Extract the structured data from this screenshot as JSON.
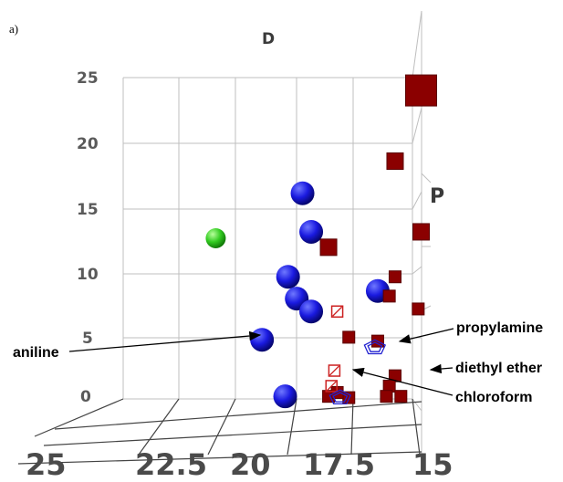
{
  "panel_label": "a)",
  "chart_data": {
    "type": "scatter",
    "title": "",
    "axes": {
      "vertical": {
        "label": "D",
        "ticks": [
          "25",
          "20",
          "15",
          "10",
          "5",
          "0"
        ]
      },
      "horizontal": {
        "label": "",
        "ticks": [
          "25",
          "22.5",
          "20",
          "17.5",
          "15"
        ]
      },
      "depth": {
        "label": "P"
      }
    },
    "grid": true,
    "series": [
      {
        "marker": "blue-sphere",
        "color": "#1010d8",
        "points": [
          {
            "x": 18.8,
            "y": 16.0
          },
          {
            "x": 18.5,
            "y": 13.0
          },
          {
            "x": 19.3,
            "y": 9.5
          },
          {
            "x": 19.0,
            "y": 7.8
          },
          {
            "x": 18.5,
            "y": 6.8
          },
          {
            "x": 16.2,
            "y": 8.4
          },
          {
            "x": 20.2,
            "y": 4.6
          },
          {
            "x": 19.4,
            "y": 0.2
          }
        ]
      },
      {
        "marker": "green-sphere",
        "color": "#33cc22",
        "points": [
          {
            "x": 21.8,
            "y": 12.5
          }
        ]
      },
      {
        "marker": "dark-red-cube",
        "color": "#8b0000",
        "points": [
          {
            "x": 14.7,
            "y": 24.0
          },
          {
            "x": 15.6,
            "y": 18.5
          },
          {
            "x": 14.7,
            "y": 13.0
          },
          {
            "x": 17.9,
            "y": 11.8
          },
          {
            "x": 15.6,
            "y": 9.5
          },
          {
            "x": 15.8,
            "y": 8.0
          },
          {
            "x": 14.8,
            "y": 7.0
          },
          {
            "x": 17.2,
            "y": 4.8
          },
          {
            "x": 16.2,
            "y": 4.5
          },
          {
            "x": 15.6,
            "y": 1.8
          },
          {
            "x": 15.8,
            "y": 1.0
          },
          {
            "x": 17.9,
            "y": 0.2
          },
          {
            "x": 17.2,
            "y": 0.1
          },
          {
            "x": 15.9,
            "y": 0.2
          },
          {
            "x": 15.4,
            "y": 0.2
          },
          {
            "x": 17.6,
            "y": 0.5
          }
        ]
      },
      {
        "marker": "hollow-red-cube",
        "color": "#cc2222",
        "points": [
          {
            "x": 17.6,
            "y": 6.8
          },
          {
            "x": 17.7,
            "y": 2.2
          },
          {
            "x": 17.8,
            "y": 1.0
          }
        ]
      },
      {
        "marker": "hollow-blue-pentagon",
        "color": "#2020d0",
        "points": [
          {
            "x": 16.3,
            "y": 4.0
          },
          {
            "x": 17.5,
            "y": 0.1
          }
        ]
      }
    ],
    "annotations": [
      {
        "text": "aniline"
      },
      {
        "text": "propylamine"
      },
      {
        "text": "diethyl ether"
      },
      {
        "text": "chloroform"
      }
    ]
  }
}
